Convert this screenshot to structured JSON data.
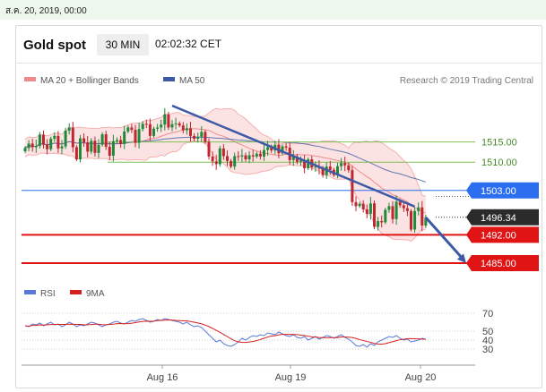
{
  "date_line": "ส.ค. 20, 2019, 00:00",
  "header": {
    "title": "Gold spot",
    "timeframe": "30 MIN",
    "time": "02:02:32 CET"
  },
  "legend": {
    "bollinger": "MA 20 + Bollinger Bands",
    "ma50": "MA 50",
    "credit": "Research © 2019 Trading Central"
  },
  "colors": {
    "up": "#1f8a3a",
    "down": "#c0262d",
    "bollinger": "#f08a8a",
    "ma50": "#3d5aa6",
    "resistance_green": "#7cbf55",
    "blue_level": "#2b6ff0",
    "support_red": "#e01414",
    "trend": "#3d5aa6",
    "rsi": "#5a78d8",
    "rsi_ma": "#d62020"
  },
  "chart_data": {
    "type": "candlestick",
    "ylim": [
      1481,
      1528
    ],
    "x_ticks": [
      "Aug 16",
      "Aug 19",
      "Aug 20"
    ],
    "levels": [
      {
        "label": "1515.00",
        "value": 1515.0,
        "style": "green-line"
      },
      {
        "label": "1510.00",
        "value": 1510.0,
        "style": "green-line"
      },
      {
        "label": "1503.00",
        "value": 1503.0,
        "style": "blue-badge"
      },
      {
        "label": "1496.34",
        "value": 1496.34,
        "style": "current-price"
      },
      {
        "label": "1492.00",
        "value": 1492.0,
        "style": "red-badge"
      },
      {
        "label": "1485.00",
        "value": 1485.0,
        "style": "red-badge"
      }
    ],
    "trendline": {
      "from": {
        "bar": 40,
        "value": 1524
      },
      "to": {
        "bar": 106,
        "value": 1499
      }
    },
    "projection": {
      "from": {
        "bar": 109,
        "value": 1496.3
      },
      "to": {
        "bar": 120,
        "value": 1485
      }
    },
    "closes": [
      1513.5,
      1514.6,
      1513.7,
      1514.0,
      1516.8,
      1514.3,
      1513.2,
      1515.8,
      1516.5,
      1513.4,
      1513.9,
      1517.8,
      1518.6,
      1513.7,
      1510.7,
      1515.9,
      1514.9,
      1512.6,
      1515.3,
      1512.3,
      1514.3,
      1516.9,
      1513.8,
      1511.6,
      1515.2,
      1515.5,
      1514.5,
      1517.6,
      1518.6,
      1518.0,
      1514.8,
      1518.2,
      1519.5,
      1519.4,
      1516.5,
      1518.3,
      1518.6,
      1519.3,
      1521.8,
      1518.6,
      1519.4,
      1519.6,
      1519.1,
      1517.9,
      1518.4,
      1516.5,
      1515.8,
      1516.3,
      1517.5,
      1515.0,
      1511.4,
      1510.2,
      1509.5,
      1513.4,
      1511.5,
      1510.3,
      1508.9,
      1511.5,
      1511.4,
      1511.7,
      1510.7,
      1511.7,
      1511.4,
      1512.1,
      1511.4,
      1513.0,
      1513.7,
      1512.9,
      1514.3,
      1512.2,
      1513.9,
      1513.6,
      1510.5,
      1511.4,
      1510.1,
      1510.4,
      1508.5,
      1510.7,
      1508.7,
      1508.9,
      1508.4,
      1506.8,
      1508.9,
      1508.1,
      1506.8,
      1509.0,
      1509.8,
      1509.2,
      1508.0,
      1500.1,
      1499.1,
      1499.7,
      1498.3,
      1497.2,
      1499.8,
      1494.0,
      1495.4,
      1495.1,
      1498.2,
      1499.1,
      1495.9,
      1500.2,
      1499.3,
      1498.6,
      1497.9,
      1493.3,
      1497.9,
      1498.8,
      1494.3,
      1496.3
    ],
    "rsi": {
      "label": "RSI",
      "ma_label": "9MA",
      "ticks": [
        70,
        50,
        40,
        30
      ],
      "ylim": [
        20,
        80
      ],
      "values": [
        56,
        55,
        58,
        57,
        59,
        56,
        58,
        60,
        57,
        58,
        55,
        57,
        60,
        58,
        55,
        57,
        56,
        58,
        60,
        59,
        57,
        55,
        57,
        58,
        60,
        61,
        59,
        58,
        60,
        62,
        61,
        63,
        64,
        62,
        60,
        61,
        63,
        62,
        64,
        63,
        62,
        61,
        60,
        58,
        60,
        57,
        55,
        56,
        54,
        50,
        46,
        42,
        38,
        40,
        36,
        34,
        33,
        35,
        38,
        42,
        40,
        43,
        45,
        44,
        46,
        45,
        48,
        47,
        46,
        49,
        47,
        45,
        44,
        46,
        43,
        42,
        44,
        40,
        42,
        44,
        41,
        43,
        45,
        44,
        42,
        44,
        46,
        43,
        41,
        38,
        34,
        33,
        35,
        32,
        36,
        34,
        38,
        40,
        42,
        44,
        43,
        45,
        42,
        40,
        41,
        38,
        39,
        40,
        42,
        41
      ]
    }
  }
}
